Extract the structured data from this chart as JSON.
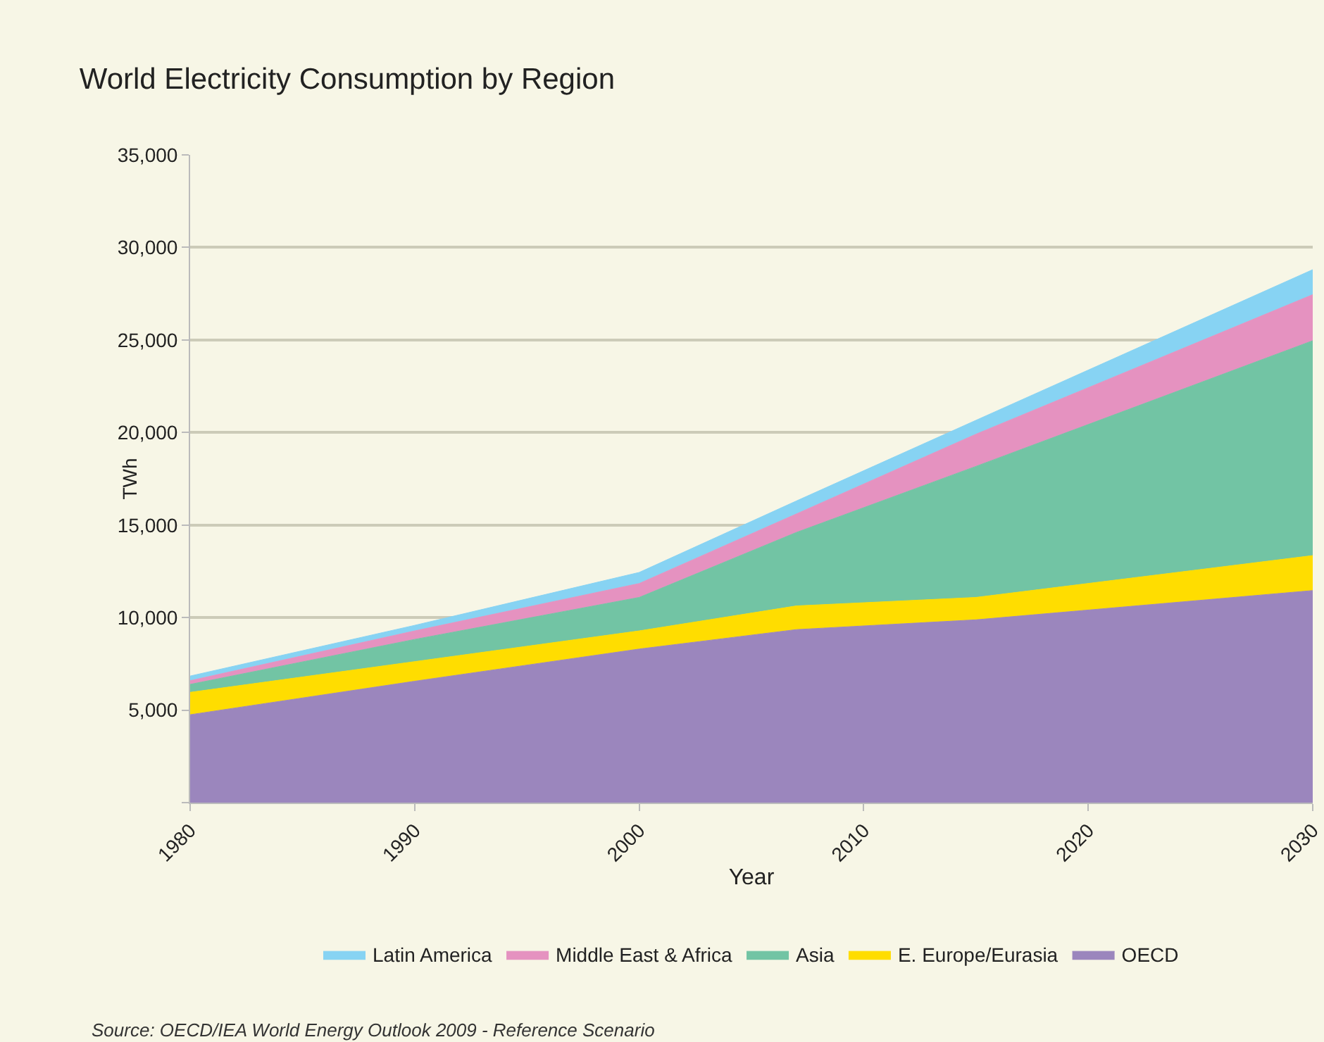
{
  "chart_data": {
    "type": "area",
    "title": "World Electricity Consumption by Region",
    "xlabel": "Year",
    "ylabel": "TWh",
    "stacked": true,
    "x": [
      1980,
      1990,
      2000,
      2007,
      2015,
      2030
    ],
    "series": [
      {
        "name": "OECD",
        "color": "#9b86bd",
        "values": [
          4750,
          6560,
          8300,
          9350,
          9880,
          11460
        ]
      },
      {
        "name": "E. Europe/Eurasia",
        "color": "#ffdd00",
        "values": [
          1210,
          1060,
          980,
          1280,
          1210,
          1890
        ]
      },
      {
        "name": "Asia",
        "color": "#72c4a4",
        "values": [
          430,
          1200,
          1810,
          3970,
          7080,
          11610
        ]
      },
      {
        "name": "Middle East & Africa",
        "color": "#e592c0",
        "values": [
          200,
          460,
          750,
          1000,
          1740,
          2490
        ]
      },
      {
        "name": "Latin America",
        "color": "#87d3f3",
        "values": [
          250,
          300,
          600,
          700,
          750,
          1350
        ]
      }
    ],
    "xlim": [
      1980,
      2030
    ],
    "xticks": [
      1980,
      1990,
      2000,
      2010,
      2020,
      2030
    ],
    "ylim": [
      0,
      35000
    ],
    "yticks": [
      {
        "value": 0,
        "label": null
      },
      {
        "value": 5000,
        "label": "5,000"
      },
      {
        "value": 10000,
        "label": "10,000"
      },
      {
        "value": 15000,
        "label": "15,000"
      },
      {
        "value": 20000,
        "label": "20,000"
      },
      {
        "value": 25000,
        "label": "25,000"
      },
      {
        "value": 30000,
        "label": "30,000"
      },
      {
        "value": 35000,
        "label": "35,000"
      }
    ],
    "grid": "y",
    "legend": "bottom",
    "annotations": [
      "Source: OECD/IEA World Energy Outlook 2009 - Reference Scenario"
    ]
  }
}
